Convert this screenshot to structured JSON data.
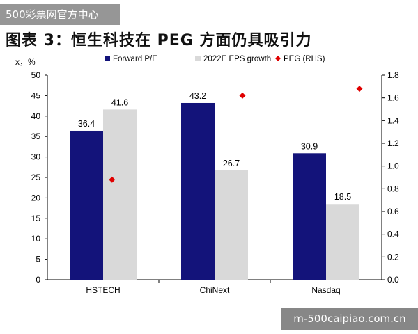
{
  "watermark_top": "500彩票网官方中心",
  "watermark_bottom": "m-500caipiao.com.cn",
  "chart_data": {
    "type": "bar",
    "title": "图表 3：恒生科技在 PEG 方面仍具吸引力",
    "ylabel_left": "x，%",
    "categories": [
      "HSTECH",
      "ChiNext",
      "Nasdaq"
    ],
    "series": [
      {
        "name": "Forward P/E",
        "type": "bar",
        "axis": "left",
        "color": "#13137a",
        "values": [
          36.4,
          43.2,
          30.9
        ],
        "labels": [
          "36.4",
          "43.2",
          "30.9"
        ]
      },
      {
        "name": "2022E EPS growth",
        "type": "bar",
        "axis": "left",
        "color": "#d9d9d9",
        "values": [
          41.6,
          26.7,
          18.5
        ],
        "labels": [
          "41.6",
          "26.7",
          "18.5"
        ]
      },
      {
        "name": "PEG (RHS)",
        "type": "scatter",
        "axis": "right",
        "color": "#e00000",
        "marker": "diamond",
        "values": [
          0.88,
          1.62,
          1.68
        ]
      }
    ],
    "ylim_left": [
      0,
      50
    ],
    "yticks_left": [
      "0",
      "5",
      "10",
      "15",
      "20",
      "25",
      "30",
      "35",
      "40",
      "45",
      "50"
    ],
    "ylim_right": [
      0,
      1.8
    ],
    "yticks_right": [
      "0.0",
      "0.2",
      "0.4",
      "0.6",
      "0.8",
      "1.0",
      "1.2",
      "1.4",
      "1.6",
      "1.8"
    ],
    "grid": false,
    "legend": "top"
  }
}
